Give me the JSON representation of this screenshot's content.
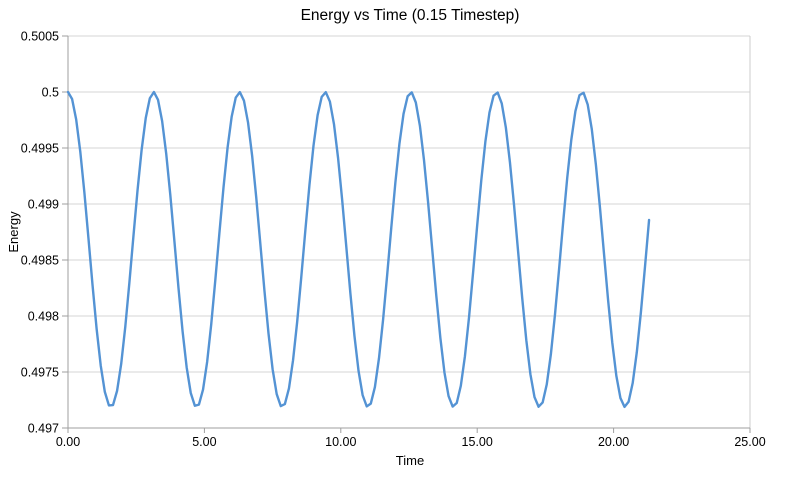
{
  "window": {
    "title": "Energy vs Time (0.15 Timestep)"
  },
  "colors": {
    "background": "#ffffff",
    "line": "#5493d4",
    "gridline": "#d4d4d4",
    "plot_border": "#cccccc",
    "axis": "#9f9f9f",
    "text": "#000000"
  },
  "chart_data": {
    "type": "line",
    "title": "Energy vs Time (0.15 Timestep)",
    "xlabel": "Time",
    "ylabel": "Energy",
    "xlim": [
      0,
      25
    ],
    "ylim": [
      0.497,
      0.5005
    ],
    "x_tick_values": [
      0,
      5,
      10,
      15,
      20,
      25
    ],
    "x_tick_labels": [
      "0.00",
      "5.00",
      "10.00",
      "15.00",
      "20.00",
      "25.00"
    ],
    "y_tick_values": [
      0.497,
      0.4975,
      0.498,
      0.4985,
      0.499,
      0.4995,
      0.5,
      0.5005
    ],
    "y_tick_labels": [
      "0.497",
      "0.4975",
      "0.498",
      "0.4985",
      "0.499",
      "0.4995",
      "0.5",
      "0.5005"
    ],
    "grid": "horizontal-only",
    "legend": "none",
    "series": [
      {
        "name": "Energy",
        "color": "#5493d4",
        "description": "Numerical energy of oscillator, E(t) = offset - amplitude*sin^2(t); oscillates between 0.5 (peaks at t = 0, pi, 2pi, ...) and ~0.4972 (troughs at t = pi/2 + k*pi), period pi",
        "offset": 0.5,
        "amplitude": 0.0028125,
        "t_start": 0,
        "t_end": 21.3,
        "dt": 0.15,
        "period": 3.1416,
        "peak_value": 0.5,
        "trough_value": 0.4972,
        "peak_times": [
          0,
          3.14,
          6.28,
          9.42,
          12.57,
          15.71,
          18.85
        ],
        "trough_times": [
          1.57,
          4.71,
          7.85,
          10.99,
          14.14,
          17.28,
          20.42
        ],
        "end_point": [
          21.3,
          0.4989
        ]
      }
    ]
  }
}
